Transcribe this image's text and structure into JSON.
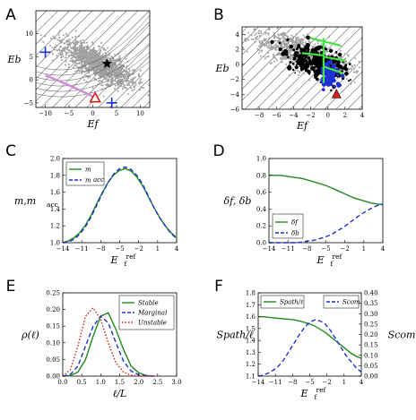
{
  "colors": {
    "green": "#1f8a1f",
    "blue": "#1f2fd6",
    "red": "#d42020",
    "pink": "#d28bd6",
    "gray": "#a0a0a0",
    "bright_green": "#3ee63e"
  },
  "chart_data": [
    {
      "panel": "A",
      "type": "scatter",
      "xlabel": "E_f",
      "ylabel": "E_b",
      "xlim": [
        -12,
        12
      ],
      "ylim": [
        -6,
        15
      ],
      "xticks": [
        "−10",
        "−5",
        "0",
        "5",
        "10"
      ],
      "yticks": [
        "−5",
        "0",
        "5",
        "10"
      ],
      "grid": false,
      "legend": "none",
      "markers": {
        "star": [
          3,
          3.5
        ],
        "triangle": [
          0.5,
          -4
        ],
        "pink_line_start": [
          -10,
          1
        ],
        "blue_cross_1": [
          -10,
          6
        ],
        "blue_cross_2": [
          4,
          -5
        ]
      }
    },
    {
      "panel": "B",
      "type": "scatter",
      "xlabel": "E_f",
      "ylabel": "E_b",
      "xlim": [
        -10,
        4
      ],
      "ylim": [
        -6,
        5
      ],
      "xticks": [
        "−8",
        "−6",
        "−4",
        "−2",
        "0",
        "2",
        "4"
      ],
      "yticks": [
        "−6",
        "−4",
        "−2",
        "0",
        "2",
        "4"
      ],
      "grid": false,
      "legend": "none",
      "markers": {
        "triangle": [
          1,
          -4
        ]
      }
    },
    {
      "panel": "C",
      "type": "line",
      "xlabel": "E_f",
      "xlabel_sup": "ref",
      "ylabel": "m,m",
      "ylabel_sub": "acc",
      "xticks": [
        "−14",
        "−11",
        "−8",
        "−5",
        "−2",
        "1",
        "4"
      ],
      "xlim": [
        -15,
        5
      ],
      "ylim": [
        1.0,
        2.0
      ],
      "yticks": [
        "1.0",
        "1.2",
        "1.4",
        "1.6",
        "1.8",
        "2.0"
      ],
      "legend": "top-left",
      "x": [
        -15,
        -14,
        -13,
        -12,
        -11,
        -10,
        -9,
        -8,
        -7,
        -6,
        -5,
        -4,
        -3,
        -2,
        -1,
        0,
        1,
        2,
        3,
        4,
        5
      ],
      "series": [
        {
          "name": "m",
          "color": "#1f8a1f",
          "style": "solid",
          "values": [
            1.0,
            1.02,
            1.06,
            1.12,
            1.21,
            1.33,
            1.47,
            1.6,
            1.72,
            1.81,
            1.86,
            1.88,
            1.85,
            1.78,
            1.68,
            1.55,
            1.42,
            1.3,
            1.2,
            1.12,
            1.06
          ]
        },
        {
          "name": "m_acc",
          "color": "#1f2fd6",
          "style": "dashed",
          "values": [
            1.0,
            1.01,
            1.04,
            1.1,
            1.19,
            1.31,
            1.45,
            1.59,
            1.72,
            1.82,
            1.88,
            1.9,
            1.87,
            1.8,
            1.7,
            1.56,
            1.42,
            1.3,
            1.2,
            1.11,
            1.05
          ]
        }
      ]
    },
    {
      "panel": "D",
      "type": "line",
      "xlabel": "E_f",
      "xlabel_sup": "ref",
      "ylabel": "δ_f, δ_b",
      "xticks": [
        "−14",
        "−11",
        "−8",
        "−5",
        "−2",
        "1",
        "4"
      ],
      "xlim": [
        -15,
        5
      ],
      "ylim": [
        0,
        1.0
      ],
      "yticks": [
        "0.0",
        "0.2",
        "0.4",
        "0.6",
        "0.8",
        "1.0"
      ],
      "legend": "bottom-left",
      "x": [
        -15,
        -14,
        -13,
        -12,
        -11,
        -10,
        -9,
        -8,
        -7,
        -6,
        -5,
        -4,
        -3,
        -2,
        -1,
        0,
        1,
        2,
        3,
        4,
        5
      ],
      "series": [
        {
          "name": "δ_f",
          "color": "#1f8a1f",
          "style": "solid",
          "values": [
            0.8,
            0.8,
            0.8,
            0.79,
            0.78,
            0.77,
            0.76,
            0.74,
            0.72,
            0.7,
            0.68,
            0.65,
            0.62,
            0.59,
            0.56,
            0.53,
            0.51,
            0.49,
            0.47,
            0.46,
            0.45
          ]
        },
        {
          "name": "δ_b",
          "color": "#1f2fd6",
          "style": "dashed",
          "values": [
            0.0,
            0.0,
            0.0,
            0.0,
            0.0,
            0.0,
            0.01,
            0.02,
            0.03,
            0.05,
            0.07,
            0.1,
            0.14,
            0.18,
            0.23,
            0.28,
            0.33,
            0.37,
            0.41,
            0.44,
            0.46
          ]
        }
      ]
    },
    {
      "panel": "E",
      "type": "line",
      "xlabel": "ℓ/L",
      "ylabel": "ρ(ℓ)",
      "xlim": [
        0,
        3.0
      ],
      "ylim": [
        0,
        0.25
      ],
      "xticks": [
        "0.0",
        "0.5",
        "1.0",
        "1.5",
        "2.0",
        "2.5",
        "3.0"
      ],
      "yticks": [
        "0.00",
        "0.05",
        "0.10",
        "0.15",
        "0.20",
        "0.25"
      ],
      "legend": "top-right",
      "x": [
        0.0,
        0.2,
        0.4,
        0.6,
        0.8,
        1.0,
        1.2,
        1.4,
        1.6,
        1.8,
        2.0,
        2.2,
        2.4
      ],
      "series": [
        {
          "name": "Stable",
          "color": "#1f8a1f",
          "style": "solid",
          "values": [
            0.0,
            0.002,
            0.012,
            0.05,
            0.12,
            0.18,
            0.19,
            0.14,
            0.08,
            0.03,
            0.01,
            0.002,
            0.0
          ]
        },
        {
          "name": "Marginal",
          "color": "#1f2fd6",
          "style": "dashed",
          "values": [
            0.0,
            0.005,
            0.03,
            0.09,
            0.15,
            0.18,
            0.16,
            0.1,
            0.045,
            0.015,
            0.004,
            0.001,
            0.0
          ]
        },
        {
          "name": "Unstable",
          "color": "#d42020",
          "style": "dotted",
          "values": [
            0.0,
            0.02,
            0.09,
            0.18,
            0.205,
            0.17,
            0.1,
            0.04,
            0.012,
            0.003,
            0.0,
            0.0,
            0.0
          ]
        }
      ]
    },
    {
      "panel": "F",
      "type": "line",
      "xlabel": "E_f",
      "xlabel_sup": "ref",
      "ylabel": "S_path/ℓ",
      "ylabel_right": "S_com",
      "xticks": [
        "−14",
        "−11",
        "−8",
        "−5",
        "−2",
        "1",
        "4"
      ],
      "xlim": [
        -15,
        5
      ],
      "ylim": [
        1.0,
        1.8
      ],
      "yticks": [
        "1.1",
        "1.2",
        "1.3",
        "1.4",
        "1.5",
        "1.6",
        "1.7",
        "1.8"
      ],
      "ylim_right": [
        0,
        0.4
      ],
      "yticks_right": [
        "0.00",
        "0.05",
        "0.10",
        "0.15",
        "0.20",
        "0.25",
        "0.30",
        "0.35",
        "0.40"
      ],
      "legend": "top-left and top-right",
      "x": [
        -15,
        -14,
        -13,
        -12,
        -11,
        -10,
        -9,
        -8,
        -7,
        -6,
        -5,
        -4,
        -3,
        -2,
        -1,
        0,
        1,
        2,
        3,
        4,
        5
      ],
      "series": [
        {
          "name": "S_path/ℓ",
          "axis": "left",
          "color": "#1f8a1f",
          "style": "solid",
          "values": [
            1.57,
            1.57,
            1.565,
            1.56,
            1.555,
            1.55,
            1.545,
            1.54,
            1.53,
            1.515,
            1.5,
            1.48,
            1.45,
            1.42,
            1.38,
            1.34,
            1.3,
            1.26,
            1.22,
            1.19,
            1.17
          ]
        },
        {
          "name": "S_com",
          "axis": "right",
          "color": "#1f2fd6",
          "style": "dashed",
          "values": [
            0.0,
            0.005,
            0.015,
            0.03,
            0.05,
            0.08,
            0.12,
            0.16,
            0.2,
            0.235,
            0.26,
            0.27,
            0.265,
            0.25,
            0.22,
            0.18,
            0.14,
            0.1,
            0.07,
            0.04,
            0.02
          ]
        }
      ]
    }
  ],
  "panel_labels": [
    "A",
    "B",
    "C",
    "D",
    "E",
    "F"
  ]
}
